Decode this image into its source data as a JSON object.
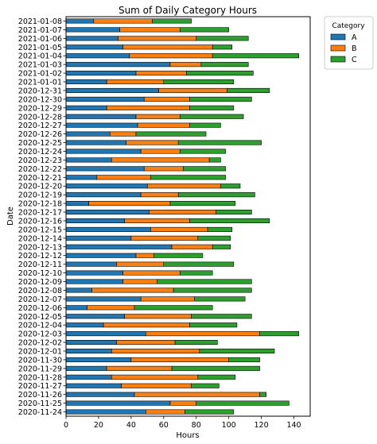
{
  "chart_data": {
    "type": "bar",
    "orientation": "horizontal",
    "stacked": true,
    "title": "Sum of Daily Category Hours",
    "xlabel": "Hours",
    "ylabel": "Date",
    "xlim": [
      0,
      150
    ],
    "xticks": [
      0,
      20,
      40,
      60,
      80,
      100,
      120,
      140
    ],
    "grid": false,
    "legend": {
      "title": "Category",
      "position": "top-right"
    },
    "categories": [
      "2021-01-08",
      "2021-01-07",
      "2021-01-06",
      "2021-01-05",
      "2021-01-04",
      "2021-01-03",
      "2021-01-02",
      "2021-01-01",
      "2020-12-31",
      "2020-12-30",
      "2020-12-29",
      "2020-12-28",
      "2020-12-27",
      "2020-12-26",
      "2020-12-25",
      "2020-12-24",
      "2020-12-23",
      "2020-12-22",
      "2020-12-21",
      "2020-12-20",
      "2020-12-19",
      "2020-12-18",
      "2020-12-17",
      "2020-12-16",
      "2020-12-15",
      "2020-12-14",
      "2020-12-13",
      "2020-12-12",
      "2020-12-11",
      "2020-12-10",
      "2020-12-09",
      "2020-12-08",
      "2020-12-07",
      "2020-12-06",
      "2020-12-05",
      "2020-12-04",
      "2020-12-03",
      "2020-12-02",
      "2020-12-01",
      "2020-11-30",
      "2020-11-29",
      "2020-11-28",
      "2020-11-27",
      "2020-11-26",
      "2020-11-25",
      "2020-11-24"
    ],
    "series": [
      {
        "name": "A",
        "color": "#1f77b4",
        "values": [
          17,
          33,
          32,
          35,
          39,
          64,
          43,
          25,
          57,
          48,
          25,
          43,
          44,
          27,
          37,
          46,
          28,
          48,
          19,
          50,
          46,
          14,
          51,
          36,
          52,
          40,
          65,
          43,
          31,
          35,
          35,
          16,
          46,
          13,
          36,
          23,
          49,
          31,
          28,
          40,
          25,
          28,
          34,
          42,
          64,
          49
        ]
      },
      {
        "name": "B",
        "color": "#ff7f0e",
        "values": [
          36,
          37,
          48,
          55,
          51,
          19,
          31,
          35,
          42,
          28,
          51,
          27,
          32,
          16,
          32,
          24,
          60,
          24,
          33,
          45,
          23,
          50,
          41,
          40,
          35,
          41,
          25,
          11,
          29,
          35,
          21,
          50,
          33,
          29,
          41,
          53,
          70,
          36,
          54,
          60,
          40,
          53,
          43,
          77,
          16,
          24
        ]
      },
      {
        "name": "C",
        "color": "#2ca02c",
        "values": [
          24,
          30,
          32,
          12,
          53,
          29,
          41,
          43,
          26,
          38,
          27,
          39,
          19,
          43,
          51,
          28,
          7,
          26,
          46,
          12,
          47,
          40,
          22,
          49,
          15,
          20,
          11,
          30,
          43,
          20,
          58,
          48,
          31,
          48,
          37,
          29,
          24,
          26,
          46,
          19,
          54,
          23,
          17,
          4,
          57,
          30
        ]
      }
    ]
  }
}
